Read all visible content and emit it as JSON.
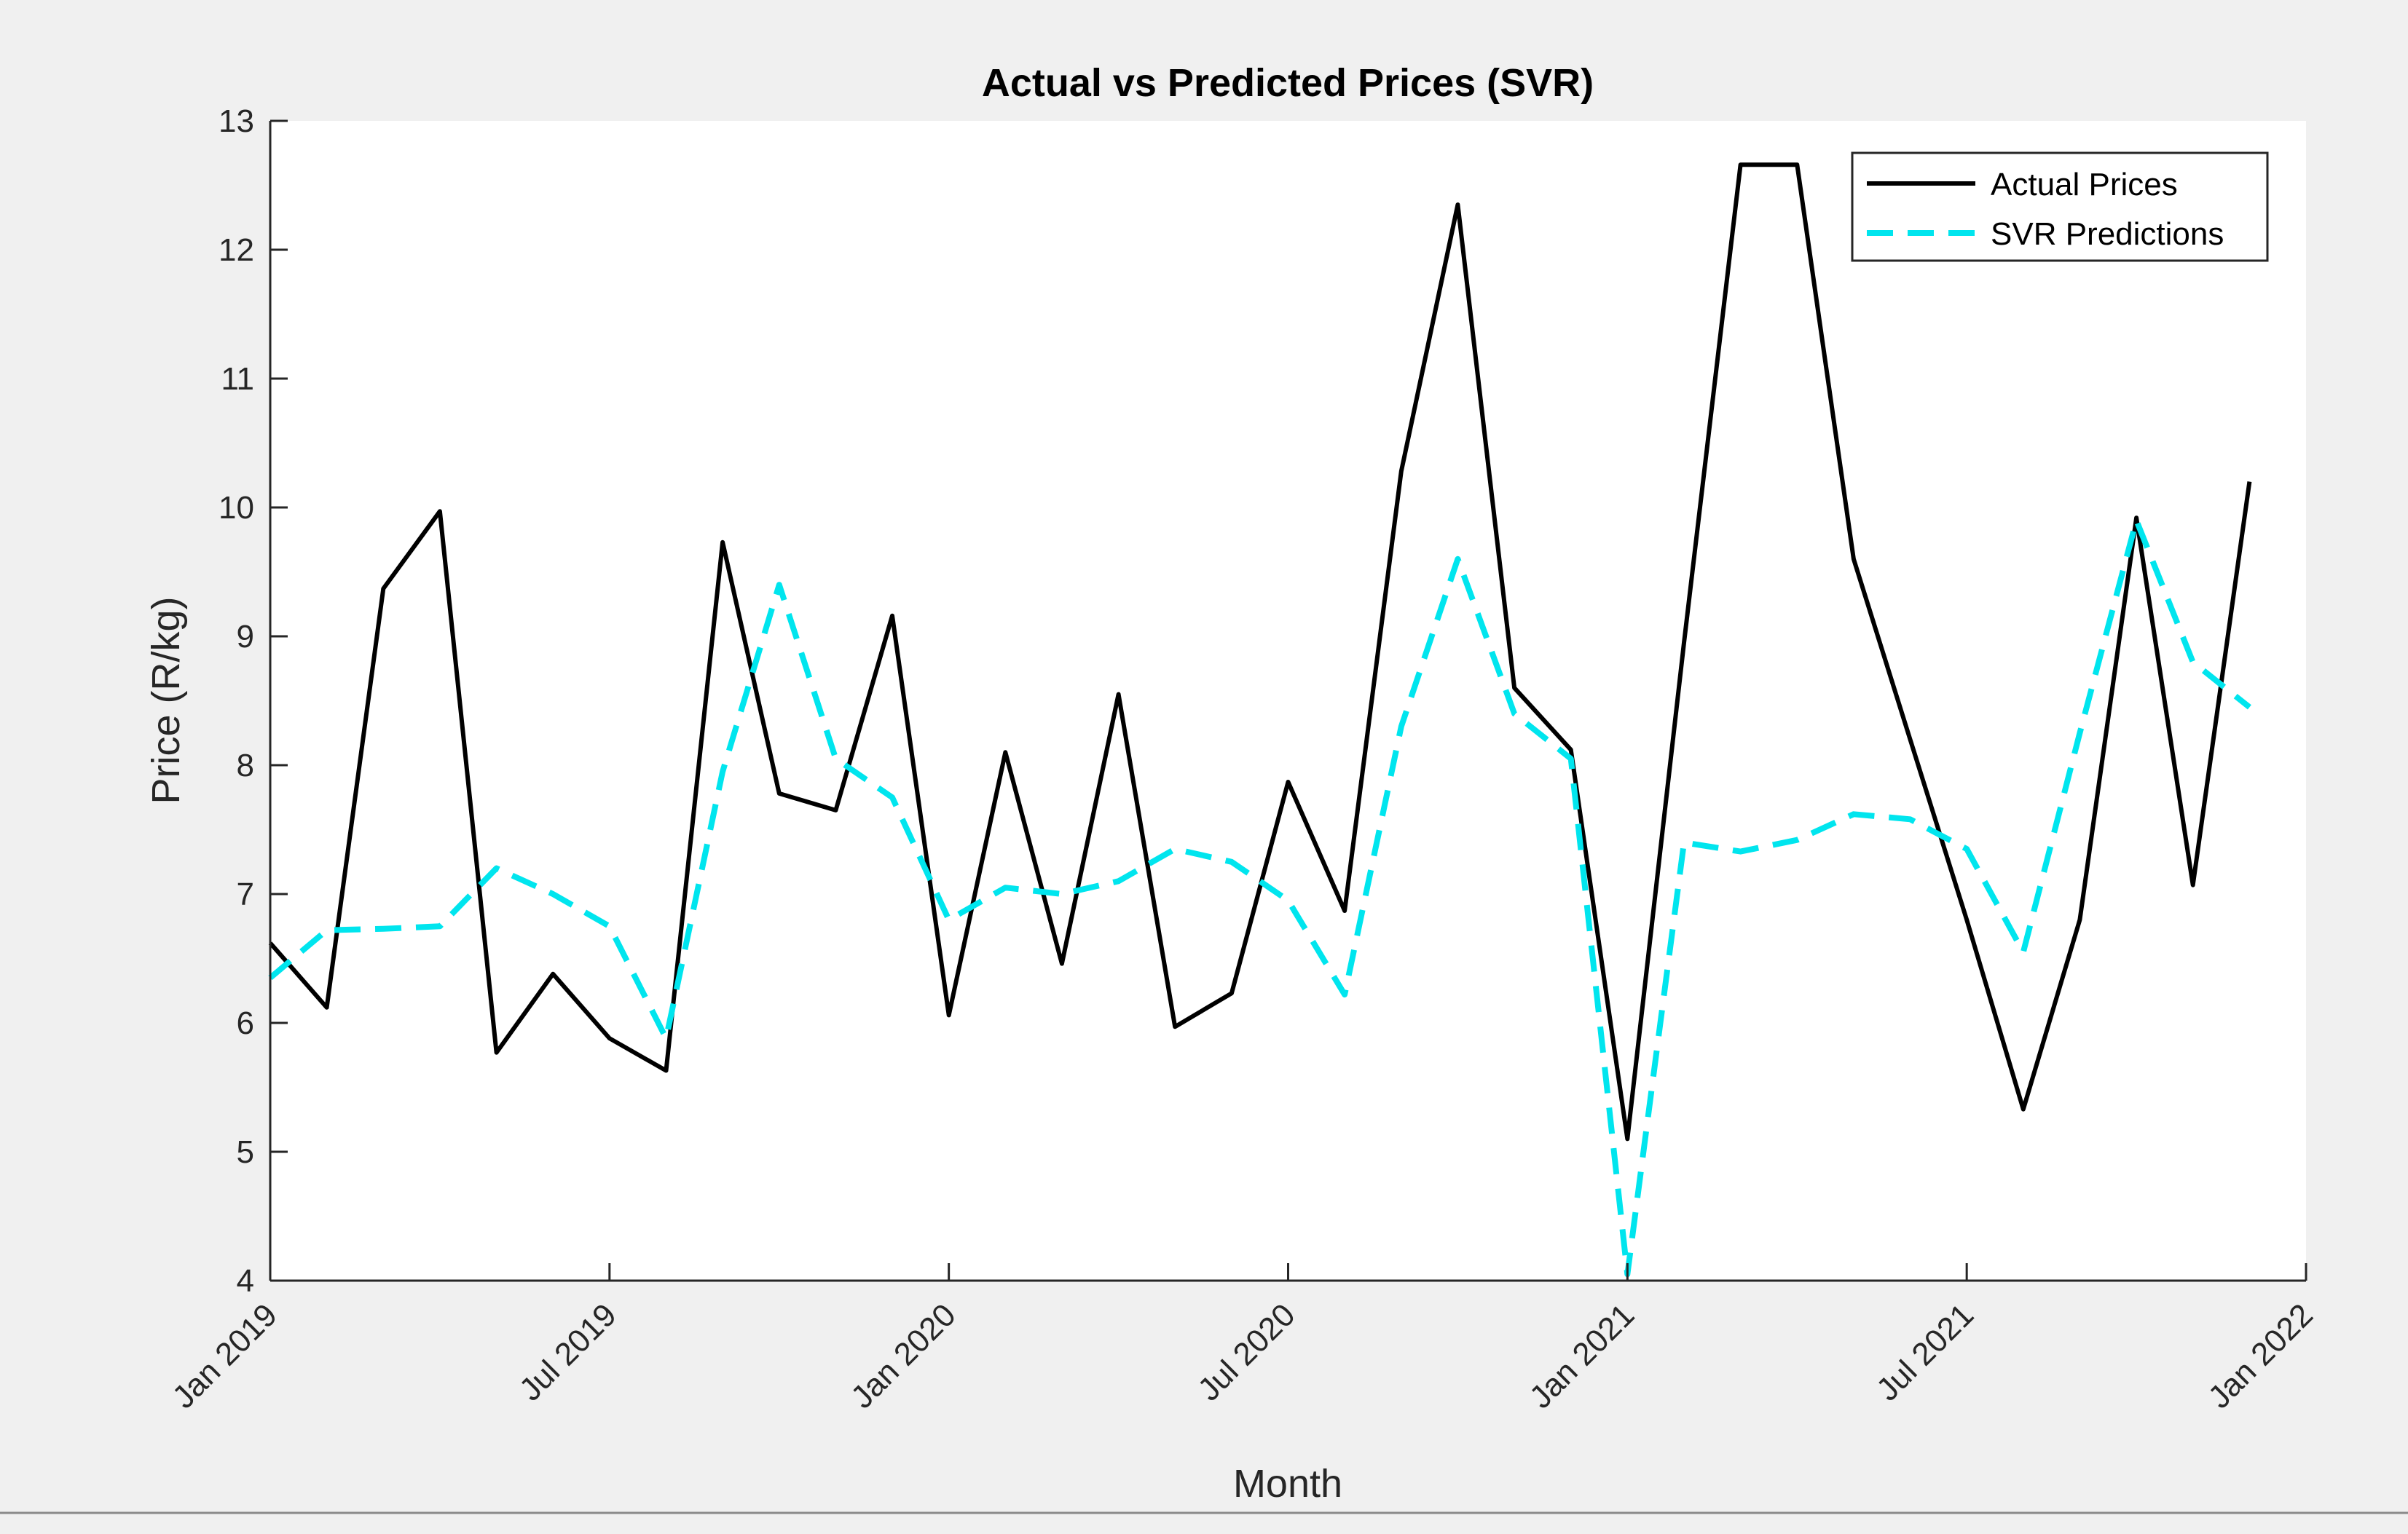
{
  "chart_data": {
    "type": "line",
    "title": "Actual vs Predicted Prices (SVR)",
    "xlabel": "Month",
    "ylabel": "Price (R/kg)",
    "xlim": [
      0,
      36
    ],
    "ylim": [
      4,
      13
    ],
    "x_ticks": [
      {
        "value": 0,
        "label": "Jan 2019"
      },
      {
        "value": 6,
        "label": "Jul 2019"
      },
      {
        "value": 12,
        "label": "Jan 2020"
      },
      {
        "value": 18,
        "label": "Jul 2020"
      },
      {
        "value": 24,
        "label": "Jan 2021"
      },
      {
        "value": 30,
        "label": "Jul 2021"
      },
      {
        "value": 36,
        "label": "Jan 2022"
      }
    ],
    "y_ticks": [
      4,
      5,
      6,
      7,
      8,
      9,
      10,
      11,
      12,
      13
    ],
    "grid": false,
    "legend_position": "top-right",
    "x": [
      0,
      1,
      2,
      3,
      4,
      5,
      6,
      7,
      8,
      9,
      10,
      11,
      12,
      13,
      14,
      15,
      16,
      17,
      18,
      19,
      20,
      21,
      22,
      23,
      24,
      25,
      26,
      27,
      28,
      29,
      30,
      31,
      32,
      33,
      34,
      35
    ],
    "series": [
      {
        "name": "Actual Prices",
        "color": "#000000",
        "style": "solid",
        "values": [
          6.62,
          6.12,
          9.37,
          9.97,
          5.77,
          6.38,
          5.88,
          5.63,
          9.73,
          7.78,
          7.65,
          9.16,
          6.06,
          8.1,
          6.46,
          8.55,
          5.97,
          6.23,
          7.87,
          6.87,
          10.28,
          12.35,
          8.6,
          8.12,
          5.1,
          8.95,
          12.66,
          12.66,
          9.6,
          8.2,
          6.8,
          5.33,
          6.8,
          9.92,
          7.07,
          10.2
        ]
      },
      {
        "name": "SVR Predictions",
        "color": "#00e5ee",
        "style": "dashed",
        "values": [
          6.35,
          6.72,
          6.73,
          6.75,
          7.2,
          7.0,
          6.75,
          5.88,
          7.95,
          9.4,
          8.05,
          7.75,
          6.8,
          7.05,
          7.0,
          7.1,
          7.35,
          7.25,
          6.95,
          6.22,
          8.3,
          9.6,
          8.4,
          8.05,
          4.05,
          7.4,
          7.33,
          7.42,
          7.62,
          7.58,
          7.35,
          6.55,
          8.25,
          9.9,
          8.8,
          8.45
        ]
      }
    ]
  }
}
